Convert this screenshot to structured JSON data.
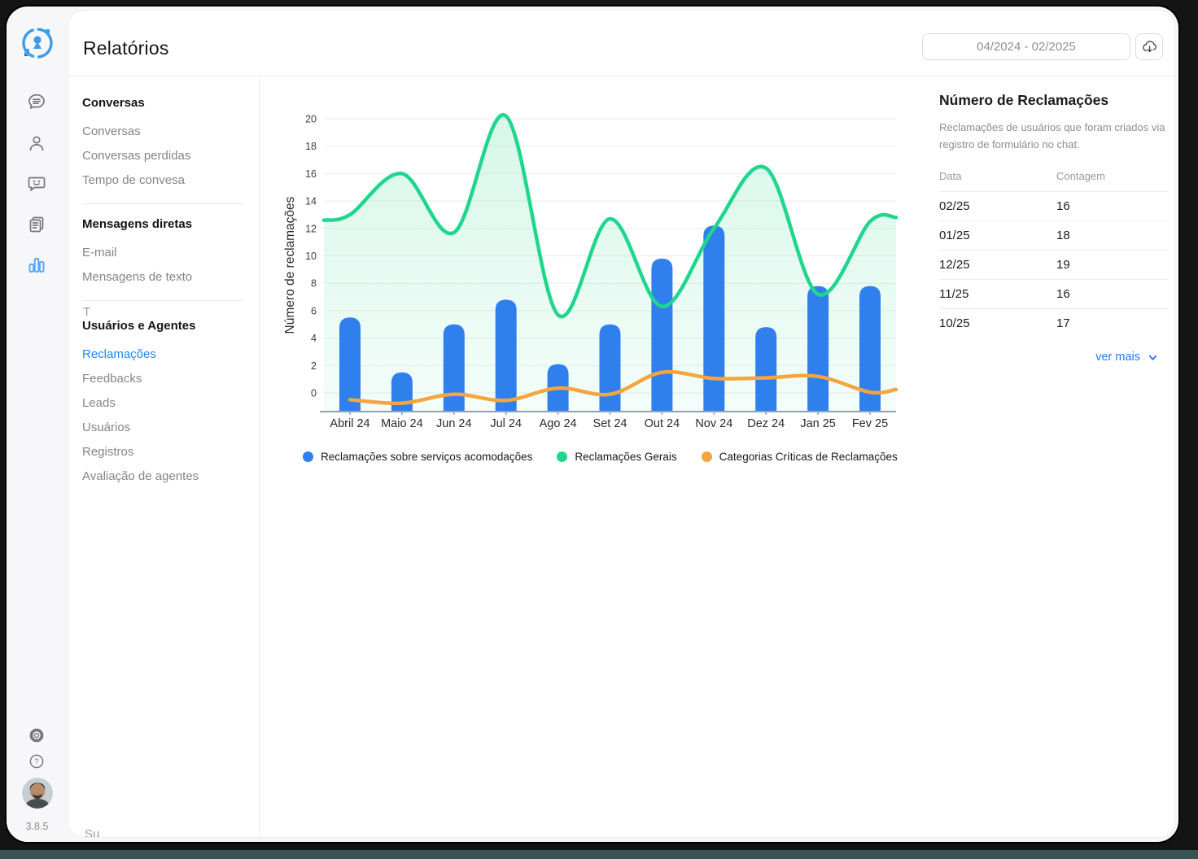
{
  "app": {
    "version": "3.8.5"
  },
  "header": {
    "title": "Relatórios",
    "date_range": "04/2024 - 02/2025"
  },
  "rail": {
    "icons": [
      "logo",
      "conversations",
      "contacts",
      "feedback",
      "documents",
      "reports",
      "settings",
      "help",
      "avatar"
    ],
    "active_icon": "reports",
    "active_color": "#56a8f5"
  },
  "nav": {
    "sections": [
      {
        "header": "Conversas",
        "items": [
          {
            "label": "Conversas"
          },
          {
            "label": "Conversas perdidas"
          },
          {
            "label": "Tempo de convesa"
          }
        ]
      },
      {
        "header": "Mensagens diretas",
        "items": [
          {
            "label": "E-mail"
          },
          {
            "label": "Mensagens de texto"
          }
        ]
      },
      {
        "header": "Usuários e Agentes",
        "items": [
          {
            "label": "Reclamações",
            "active": true
          },
          {
            "label": "Feedbacks"
          },
          {
            "label": "Leads"
          },
          {
            "label": "Usuários"
          },
          {
            "label": "Registros"
          },
          {
            "label": "Avaliação de agentes"
          }
        ]
      }
    ],
    "clipped_top": "T",
    "clipped_bottom": "Su"
  },
  "chart_data": {
    "type": "combo",
    "title": "",
    "ylabel": "Número de reclamações",
    "categories": [
      "Abril 24",
      "Maio 24",
      "Jun 24",
      "Jul 24",
      "Ago 24",
      "Set 24",
      "Out 24",
      "Nov 24",
      "Dez 24",
      "Jan 25",
      "Fev 25"
    ],
    "y_ticks": [
      0,
      2,
      4,
      6,
      8,
      10,
      12,
      14,
      16,
      18,
      20
    ],
    "ylim": [
      -1.4,
      20.9
    ],
    "grid": "horizontal",
    "legend_position": "bottom",
    "series": [
      {
        "name": "Reclamações sobre serviços acomodações",
        "type": "bar",
        "color": "#2f80ed",
        "values": [
          5.5,
          1.5,
          5,
          6.8,
          2.1,
          5,
          9.8,
          12.2,
          4.8,
          7.8,
          7.8
        ]
      },
      {
        "name": "Reclamações Gerais",
        "type": "area-line",
        "color": "#1fd68c",
        "values": [
          13,
          16,
          11.7,
          20.2,
          5.7,
          12.7,
          6.3,
          12,
          16.4,
          7.2,
          12.5
        ],
        "edge_start": 12.6,
        "edge_end": 12.8
      },
      {
        "name": "Categorias Críticas de Reclamações",
        "type": "line",
        "color": "#f5a53d",
        "values": [
          -0.5,
          -0.75,
          -0.1,
          -0.55,
          0.35,
          -0.1,
          1.5,
          1.05,
          1.1,
          1.2,
          0.05
        ],
        "edge_end": 0.25
      }
    ]
  },
  "panel": {
    "title": "Número de Reclamações",
    "description": "Reclamações de usuários que foram criados via registro de formulário no chat.",
    "columns": {
      "date": "Data",
      "count": "Contagem"
    },
    "rows": [
      {
        "date": "02/25",
        "count": "16"
      },
      {
        "date": "01/25",
        "count": "18"
      },
      {
        "date": "12/25",
        "count": "19"
      },
      {
        "date": "11/25",
        "count": "16"
      },
      {
        "date": "10/25",
        "count": "17"
      }
    ],
    "ver_mais_label": "ver mais"
  }
}
